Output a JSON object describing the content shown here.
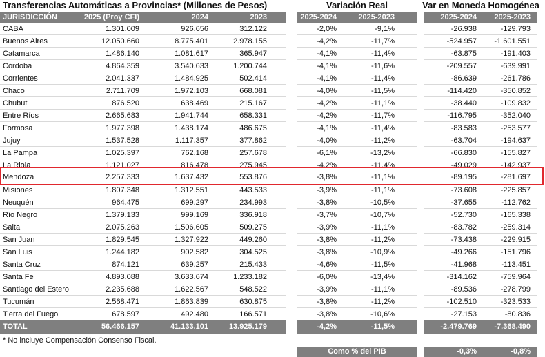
{
  "header": {
    "title": "Transferencias Automáticas a Provincias* (Millones de Pesos)",
    "real_title": "Variación Real",
    "homog_title": "Var en Moneda Homogénea"
  },
  "table": {
    "columns": [
      "JURISDICCIÓN",
      "2025 (Proy CFI)",
      "2024",
      "2023",
      "2025-2024",
      "2025-2023",
      "2025-2024",
      "2025-2023"
    ],
    "rows": [
      [
        "CABA",
        "1.301.009",
        "926.656",
        "312.122",
        "-2,0%",
        "-9,1%",
        "-26.938",
        "-129.793"
      ],
      [
        "Buenos Aires",
        "12.050.660",
        "8.775.401",
        "2.978.155",
        "-4,2%",
        "-11,7%",
        "-524.957",
        "-1.601.551"
      ],
      [
        "Catamarca",
        "1.486.140",
        "1.081.617",
        "365.947",
        "-4,1%",
        "-11,4%",
        "-63.875",
        "-191.403"
      ],
      [
        "Córdoba",
        "4.864.359",
        "3.540.633",
        "1.200.744",
        "-4,1%",
        "-11,6%",
        "-209.557",
        "-639.991"
      ],
      [
        "Corrientes",
        "2.041.337",
        "1.484.925",
        "502.414",
        "-4,1%",
        "-11,4%",
        "-86.639",
        "-261.786"
      ],
      [
        "Chaco",
        "2.711.709",
        "1.972.103",
        "668.081",
        "-4,0%",
        "-11,5%",
        "-114.420",
        "-350.852"
      ],
      [
        "Chubut",
        "876.520",
        "638.469",
        "215.167",
        "-4,2%",
        "-11,1%",
        "-38.440",
        "-109.832"
      ],
      [
        "Entre Ríos",
        "2.665.683",
        "1.941.744",
        "658.331",
        "-4,2%",
        "-11,7%",
        "-116.795",
        "-352.040"
      ],
      [
        "Formosa",
        "1.977.398",
        "1.438.174",
        "486.675",
        "-4,1%",
        "-11,4%",
        "-83.583",
        "-253.577"
      ],
      [
        "Jujuy",
        "1.537.528",
        "1.117.357",
        "377.862",
        "-4,0%",
        "-11,2%",
        "-63.704",
        "-194.637"
      ],
      [
        "La Pampa",
        "1.025.397",
        "762.168",
        "257.678",
        "-6,1%",
        "-13,2%",
        "-66.830",
        "-155.827"
      ],
      [
        "La Rioja",
        "1.121.027",
        "816.478",
        "275.945",
        "-4,2%",
        "-11,4%",
        "-49.029",
        "-142.937"
      ],
      [
        "Mendoza",
        "2.257.333",
        "1.637.432",
        "553.876",
        "-3,8%",
        "-11,1%",
        "-89.195",
        "-281.697"
      ],
      [
        "Misiones",
        "1.807.348",
        "1.312.551",
        "443.533",
        "-3,9%",
        "-11,1%",
        "-73.608",
        "-225.857"
      ],
      [
        "Neuquén",
        "964.475",
        "699.297",
        "234.993",
        "-3,8%",
        "-10,5%",
        "-37.655",
        "-112.762"
      ],
      [
        "Río Negro",
        "1.379.133",
        "999.169",
        "336.918",
        "-3,7%",
        "-10,7%",
        "-52.730",
        "-165.338"
      ],
      [
        "Salta",
        "2.075.263",
        "1.506.605",
        "509.275",
        "-3,9%",
        "-11,1%",
        "-83.782",
        "-259.314"
      ],
      [
        "San Juan",
        "1.829.545",
        "1.327.922",
        "449.260",
        "-3,8%",
        "-11,2%",
        "-73.438",
        "-229.915"
      ],
      [
        "San Luis",
        "1.244.182",
        "902.582",
        "304.525",
        "-3,8%",
        "-10,9%",
        "-49.266",
        "-151.796"
      ],
      [
        "Santa Cruz",
        "874.121",
        "639.257",
        "215.433",
        "-4,6%",
        "-11,5%",
        "-41.968",
        "-113.451"
      ],
      [
        "Santa Fe",
        "4.893.088",
        "3.633.674",
        "1.233.182",
        "-6,0%",
        "-13,4%",
        "-314.162",
        "-759.964"
      ],
      [
        "Santiago del Estero",
        "2.235.688",
        "1.622.567",
        "548.522",
        "-3,9%",
        "-11,1%",
        "-89.536",
        "-278.799"
      ],
      [
        "Tucumán",
        "2.568.471",
        "1.863.839",
        "630.875",
        "-3,8%",
        "-11,2%",
        "-102.510",
        "-323.533"
      ],
      [
        "Tierra del Fuego",
        "678.597",
        "492.480",
        "166.571",
        "-3,8%",
        "-10,6%",
        "-27.153",
        "-80.836"
      ]
    ],
    "total": [
      "TOTAL",
      "56.466.157",
      "41.133.101",
      "13.925.179",
      "-4,2%",
      "-11,5%",
      "-2.479.769",
      "-7.368.490"
    ]
  },
  "footnote": "* No incluye Compensación Consenso Fiscal.",
  "pib": {
    "label": "Como % del PIB",
    "values": [
      "-0,3%",
      "-0,8%"
    ]
  }
}
